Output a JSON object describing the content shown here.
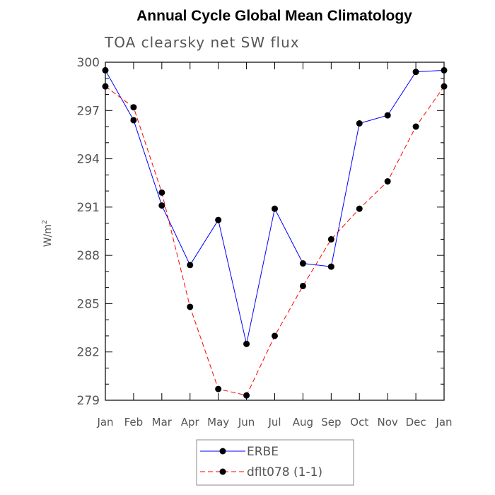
{
  "chart_data": {
    "type": "line",
    "title": "Annual Cycle Global Mean Climatology",
    "subtitle": "TOA clearsky net SW flux",
    "xlabel": "",
    "ylabel": "W/m",
    "ylabel_superscript": "2",
    "categories": [
      "Jan",
      "Feb",
      "Mar",
      "Apr",
      "May",
      "Jun",
      "Jul",
      "Aug",
      "Sep",
      "Oct",
      "Nov",
      "Dec",
      "Jan"
    ],
    "yticks": [
      "279",
      "282",
      "285",
      "288",
      "291",
      "294",
      "297",
      "300"
    ],
    "ylim": [
      279,
      300
    ],
    "grid": false,
    "legend_position": "bottom-center",
    "series": [
      {
        "name": "ERBE",
        "color": "#0000ff",
        "line_style": "solid",
        "values": [
          299.5,
          296.4,
          291.1,
          287.4,
          290.2,
          282.5,
          290.9,
          287.5,
          287.3,
          296.2,
          296.7,
          299.4,
          299.5
        ]
      },
      {
        "name": "dflt078 (1-1)",
        "color": "#ff0000",
        "line_style": "dashed",
        "values": [
          298.5,
          297.2,
          291.9,
          284.8,
          279.7,
          279.3,
          283.0,
          286.1,
          289.0,
          290.9,
          292.6,
          296.0,
          298.5
        ]
      }
    ]
  }
}
